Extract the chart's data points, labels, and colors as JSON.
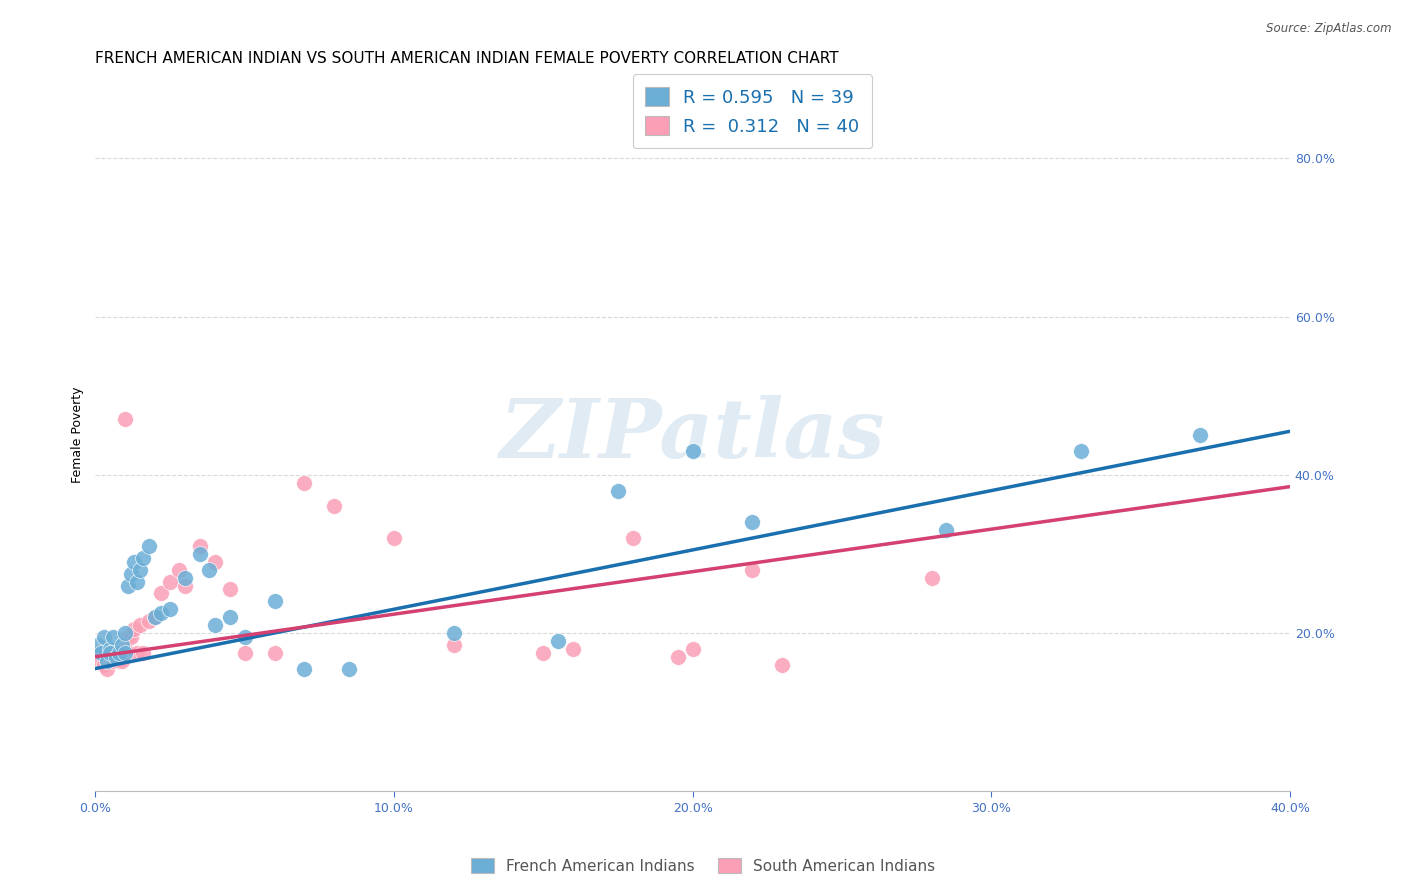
{
  "title": "FRENCH AMERICAN INDIAN VS SOUTH AMERICAN INDIAN FEMALE POVERTY CORRELATION CHART",
  "source": "Source: ZipAtlas.com",
  "xlabel": "",
  "ylabel": "Female Poverty",
  "xlim": [
    0.0,
    0.4
  ],
  "ylim": [
    0.0,
    0.9
  ],
  "xticks": [
    0.0,
    0.1,
    0.2,
    0.3,
    0.4
  ],
  "yticks": [
    0.2,
    0.4,
    0.6,
    0.8
  ],
  "xticklabels": [
    "0.0%",
    "10.0%",
    "20.0%",
    "30.0%",
    "40.0%"
  ],
  "yticklabels": [
    "20.0%",
    "40.0%",
    "60.0%",
    "80.0%"
  ],
  "blue_color": "#6baed6",
  "pink_color": "#fa9fb5",
  "line_blue": "#1a6faf",
  "line_pink": "#d44070",
  "R_blue": 0.595,
  "N_blue": 39,
  "R_pink": 0.312,
  "N_pink": 40,
  "watermark": "ZIPatlas",
  "legend_label_blue": "French American Indians",
  "legend_label_pink": "South American Indians",
  "blue_scatter_x": [
    0.001,
    0.002,
    0.003,
    0.004,
    0.005,
    0.005,
    0.006,
    0.007,
    0.008,
    0.009,
    0.01,
    0.01,
    0.011,
    0.012,
    0.013,
    0.014,
    0.015,
    0.016,
    0.018,
    0.02,
    0.022,
    0.025,
    0.03,
    0.035,
    0.038,
    0.04,
    0.045,
    0.05,
    0.06,
    0.07,
    0.085,
    0.12,
    0.155,
    0.175,
    0.2,
    0.22,
    0.285,
    0.33,
    0.37
  ],
  "blue_scatter_y": [
    0.185,
    0.175,
    0.195,
    0.165,
    0.18,
    0.175,
    0.195,
    0.17,
    0.175,
    0.185,
    0.2,
    0.175,
    0.26,
    0.275,
    0.29,
    0.265,
    0.28,
    0.295,
    0.31,
    0.22,
    0.225,
    0.23,
    0.27,
    0.3,
    0.28,
    0.21,
    0.22,
    0.195,
    0.24,
    0.155,
    0.155,
    0.2,
    0.19,
    0.38,
    0.43,
    0.34,
    0.33,
    0.43,
    0.45
  ],
  "pink_scatter_x": [
    0.001,
    0.002,
    0.003,
    0.004,
    0.005,
    0.006,
    0.007,
    0.008,
    0.009,
    0.01,
    0.01,
    0.011,
    0.012,
    0.013,
    0.014,
    0.015,
    0.016,
    0.018,
    0.02,
    0.022,
    0.025,
    0.028,
    0.03,
    0.035,
    0.04,
    0.045,
    0.05,
    0.06,
    0.07,
    0.08,
    0.1,
    0.12,
    0.15,
    0.16,
    0.18,
    0.195,
    0.2,
    0.22,
    0.23,
    0.28
  ],
  "pink_scatter_y": [
    0.175,
    0.165,
    0.16,
    0.155,
    0.17,
    0.165,
    0.175,
    0.165,
    0.165,
    0.18,
    0.47,
    0.195,
    0.195,
    0.205,
    0.175,
    0.21,
    0.175,
    0.215,
    0.22,
    0.25,
    0.265,
    0.28,
    0.26,
    0.31,
    0.29,
    0.255,
    0.175,
    0.175,
    0.39,
    0.36,
    0.32,
    0.185,
    0.175,
    0.18,
    0.32,
    0.17,
    0.18,
    0.28,
    0.16,
    0.27
  ],
  "background_color": "#ffffff",
  "grid_color": "#d0d0d0",
  "title_fontsize": 11,
  "axis_label_fontsize": 9,
  "tick_fontsize": 9,
  "tick_color": "#4472c4",
  "source_fontsize": 9,
  "blue_line_x0": 0.0,
  "blue_line_y0": 0.155,
  "blue_line_x1": 0.4,
  "blue_line_y1": 0.455,
  "pink_line_x0": 0.0,
  "pink_line_y0": 0.17,
  "pink_line_x1": 0.4,
  "pink_line_y1": 0.385
}
